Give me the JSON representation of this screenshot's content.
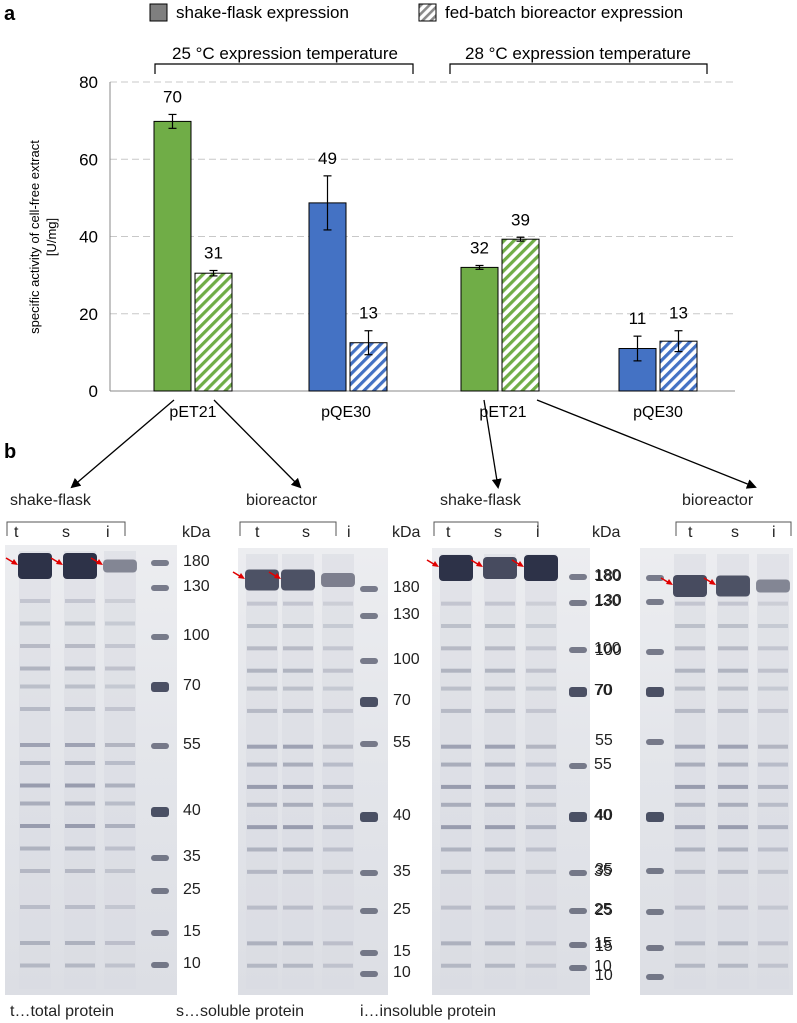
{
  "panel_labels": {
    "a": "a",
    "b": "b"
  },
  "colors": {
    "green": "#70ad47",
    "blue": "#4472c4",
    "gray": "#7f7f7f",
    "arrow": "#e00000"
  },
  "chart_data": {
    "type": "bar",
    "ylabel_line1": "specific activity of cell-free extract",
    "ylabel_line2": "[U/mg]",
    "ylim": [
      0,
      80
    ],
    "yticks": [
      0,
      20,
      40,
      60,
      80
    ],
    "grid": true,
    "legend": [
      {
        "name": "shake-flask expression",
        "pattern": "solid"
      },
      {
        "name": "fed-batch bioreactor expression",
        "pattern": "hatched"
      }
    ],
    "groups": [
      {
        "label": "25 °C expression temperature",
        "categories": [
          0,
          1
        ]
      },
      {
        "label": "28 °C expression temperature",
        "categories": [
          2,
          3
        ]
      }
    ],
    "categories": [
      "pET21",
      "pQE30",
      "pET21",
      "pQE30"
    ],
    "category_colors": [
      "green",
      "blue",
      "green",
      "blue"
    ],
    "series": [
      {
        "name": "shake-flask expression",
        "values": [
          69.8,
          48.7,
          32.0,
          11.0
        ],
        "errors": [
          1.8,
          7.0,
          0.5,
          3.2
        ],
        "labels": [
          "70",
          "49",
          "32",
          "11"
        ]
      },
      {
        "name": "fed-batch bioreactor expression",
        "values": [
          30.5,
          12.5,
          39.3,
          12.9
        ],
        "errors": [
          0.7,
          3.1,
          0.5,
          2.7
        ],
        "labels": [
          "31",
          "13",
          "39",
          "13"
        ]
      }
    ]
  },
  "gels": [
    {
      "title": "shake-flask",
      "lanes": [
        "t",
        "s",
        "i"
      ],
      "ladder": "right",
      "unit": "kDa",
      "markers": [
        "180",
        "130",
        "100",
        "70",
        "55",
        "40",
        "35",
        "25",
        "15",
        "10"
      ]
    },
    {
      "title": "bioreactor",
      "lanes": [
        "t",
        "s",
        "i"
      ],
      "ladder": "left",
      "unit": "kDa",
      "markers": [
        "180",
        "130",
        "100",
        "70",
        "55",
        "40",
        "35",
        "25",
        "15",
        "10"
      ]
    },
    {
      "title": "shake-flask",
      "lanes": [
        "t",
        "s",
        "i"
      ],
      "ladder": "right",
      "unit": "kDa",
      "markers": [
        "180",
        "130",
        "100",
        "70",
        "55",
        "40",
        "35",
        "25",
        "15",
        "10"
      ]
    },
    {
      "title": "bioreactor",
      "lanes": [
        "t",
        "s",
        "i"
      ],
      "ladder": "left",
      "unit": "kDa",
      "markers": [
        "180",
        "130",
        "100",
        "70",
        "55",
        "40",
        "35",
        "25",
        "15",
        "10"
      ]
    }
  ],
  "footer": {
    "t": "t…total protein",
    "s": "s…soluble protein",
    "i": "i…insoluble protein"
  }
}
